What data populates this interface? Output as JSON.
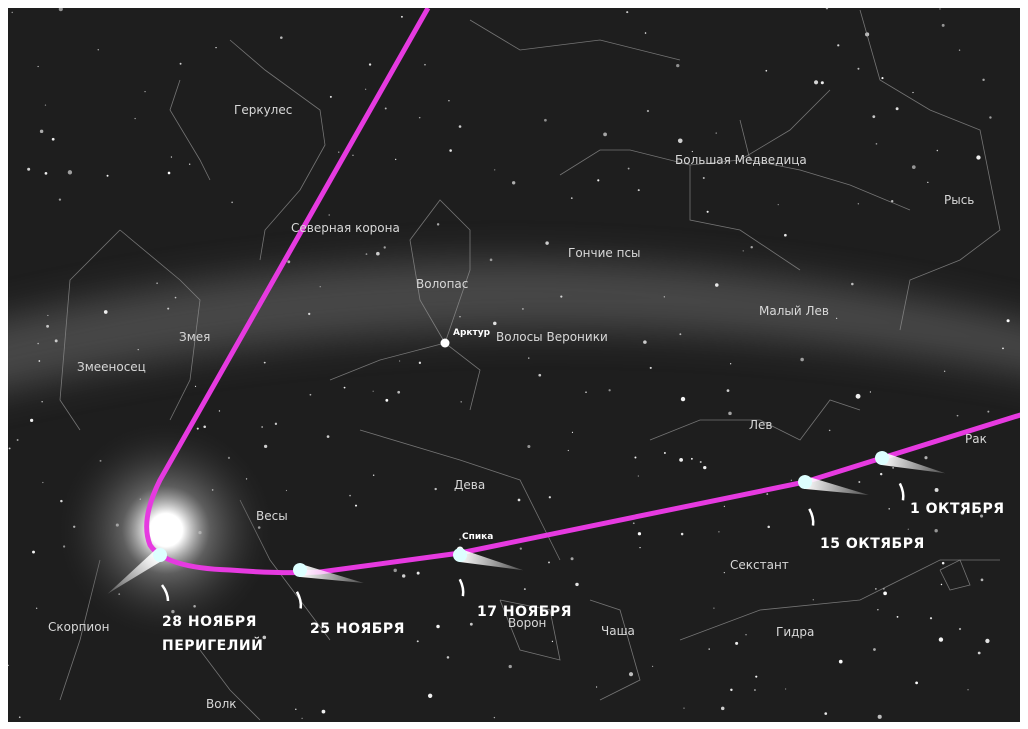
{
  "constellations": [
    "Геркулес",
    "Большая Медведица",
    "Рысь",
    "Северная корона",
    "Гончие псы",
    "Волопас",
    "Малый Лев",
    "Змея",
    "Волосы Вероники",
    "Змееносец",
    "Лев",
    "Рак",
    "Дева",
    "Весы",
    "Секстант",
    "Скорпион",
    "Ворон",
    "Чаша",
    "Гидра",
    "Волк"
  ],
  "stars": [
    "Арктур",
    "Спика"
  ],
  "dates": [
    "1 ОКТЯБРЯ",
    "15 ОКТЯБРЯ",
    "17 НОЯБРЯ",
    "25 НОЯБРЯ",
    "28 НОЯБРЯ"
  ],
  "perihelion": "ПЕРИГЕЛИЙ"
}
